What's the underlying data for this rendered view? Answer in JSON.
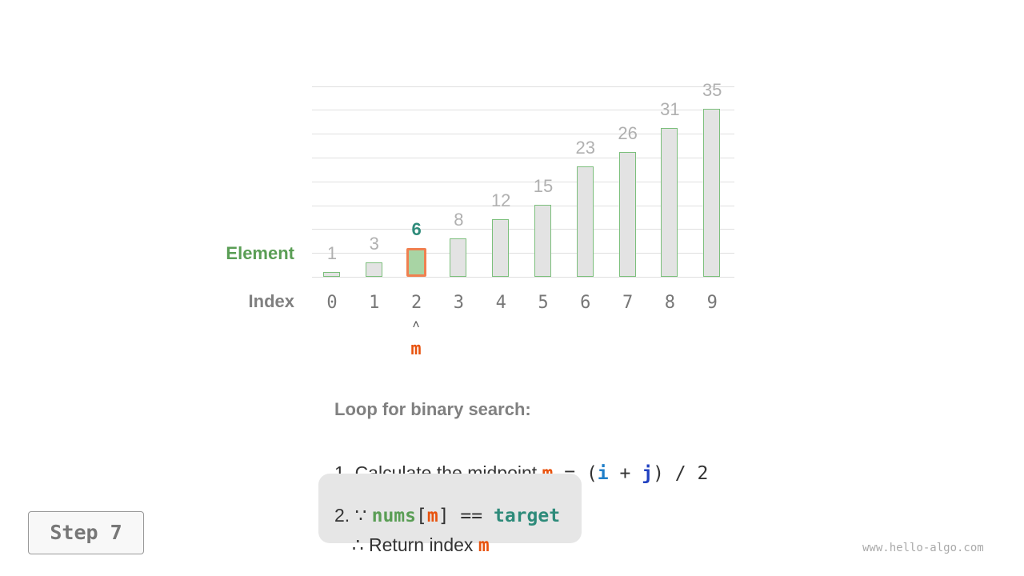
{
  "labels": {
    "element": "Element",
    "index": "Index"
  },
  "array": {
    "values": [
      1,
      3,
      6,
      8,
      12,
      15,
      23,
      26,
      31,
      35
    ],
    "indices": [
      "0",
      "1",
      "2",
      "3",
      "4",
      "5",
      "6",
      "7",
      "8",
      "9"
    ],
    "highlight_index": 2
  },
  "pointer": {
    "arrow": "˄",
    "label": "m"
  },
  "steps": {
    "title": "Loop for binary search:",
    "s1": {
      "prefix": "1. Calculate the midpoint ",
      "m": "m",
      "eq": " = (",
      "i": "i",
      "plus": " + ",
      "j": "j",
      "rest": ") / 2"
    },
    "s2": {
      "prefix": "2. ∵ ",
      "nums": "nums",
      "lb": "[",
      "m": "m",
      "rb": "]",
      "eq": " == ",
      "target": "target",
      "line2": "∴ Return index ",
      "m2": "m"
    }
  },
  "step_button": "Step 7",
  "watermark": "www.hello-algo.com",
  "colors": {
    "green": "#5a9e55",
    "teal": "#2e8b7a",
    "orange": "#e8530e",
    "blue_i": "#1f7fc9",
    "blue_j": "#2040c0",
    "highlight_border": "#f08050",
    "highlight_fill": "#a8d4a4"
  }
}
